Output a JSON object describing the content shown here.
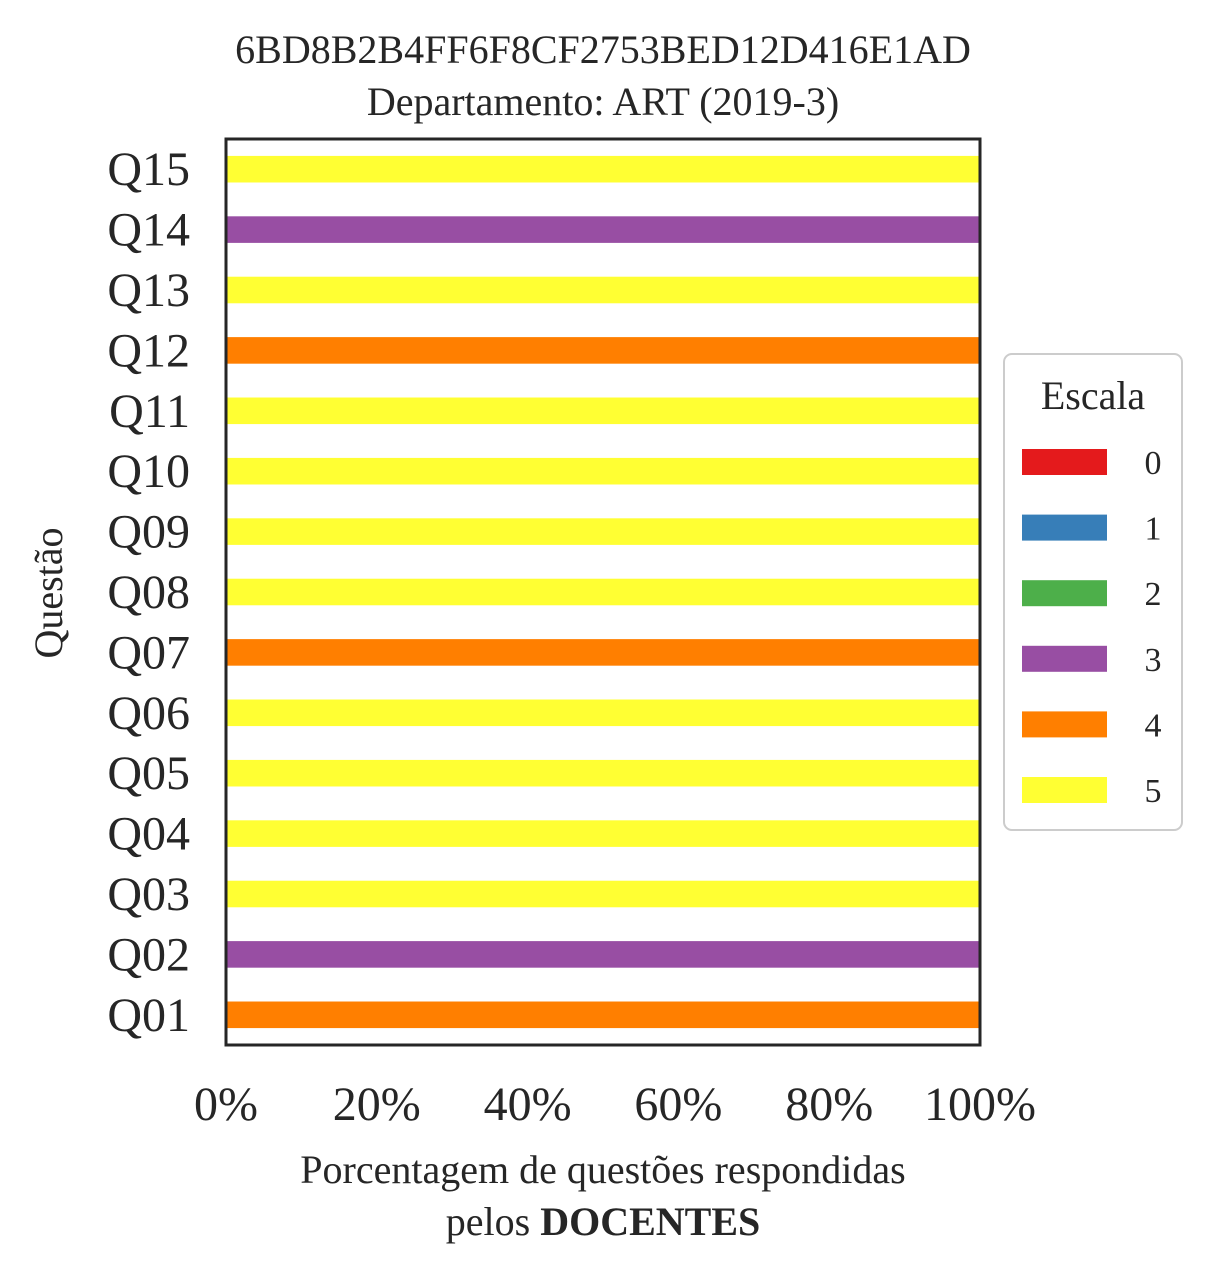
{
  "chart_data": {
    "type": "bar",
    "orientation": "horizontal",
    "stacked": true,
    "title": "6BD8B2B4FF6F8CF2753BED12D416E1AD",
    "subtitle": "Departamento: ART (2019-3)",
    "ylabel": "Questão",
    "xlabel_line1": "Porcentagem de questões respondidas",
    "xlabel_line2_prefix": "pelos ",
    "xlabel_line2_bold": "DOCENTES",
    "xlim": [
      0,
      100
    ],
    "xticks": [
      0,
      20,
      40,
      60,
      80,
      100
    ],
    "xtick_labels": [
      "0%",
      "20%",
      "40%",
      "60%",
      "80%",
      "100%"
    ],
    "categories": [
      "Q01",
      "Q02",
      "Q03",
      "Q04",
      "Q05",
      "Q06",
      "Q07",
      "Q08",
      "Q09",
      "Q10",
      "Q11",
      "Q12",
      "Q13",
      "Q14",
      "Q15"
    ],
    "series": [
      {
        "name": "0",
        "color": "#e41a1c",
        "values": [
          0,
          0,
          0,
          0,
          0,
          0,
          0,
          0,
          0,
          0,
          0,
          0,
          0,
          0,
          0
        ]
      },
      {
        "name": "1",
        "color": "#377eb8",
        "values": [
          0,
          0,
          0,
          0,
          0,
          0,
          0,
          0,
          0,
          0,
          0,
          0,
          0,
          0,
          0
        ]
      },
      {
        "name": "2",
        "color": "#4daf4a",
        "values": [
          0,
          0,
          0,
          0,
          0,
          0,
          0,
          0,
          0,
          0,
          0,
          0,
          0,
          0,
          0
        ]
      },
      {
        "name": "3",
        "color": "#984ea3",
        "values": [
          0,
          100,
          0,
          0,
          0,
          0,
          0,
          0,
          0,
          0,
          0,
          0,
          0,
          100,
          0
        ]
      },
      {
        "name": "4",
        "color": "#ff7f00",
        "values": [
          100,
          0,
          0,
          0,
          0,
          0,
          100,
          0,
          0,
          0,
          0,
          100,
          0,
          0,
          0
        ]
      },
      {
        "name": "5",
        "color": "#ffff33",
        "values": [
          0,
          0,
          100,
          100,
          100,
          100,
          0,
          100,
          100,
          100,
          100,
          0,
          100,
          0,
          100
        ]
      }
    ],
    "legend": {
      "title": "Escala",
      "placement": "center-right"
    },
    "grid": false
  }
}
